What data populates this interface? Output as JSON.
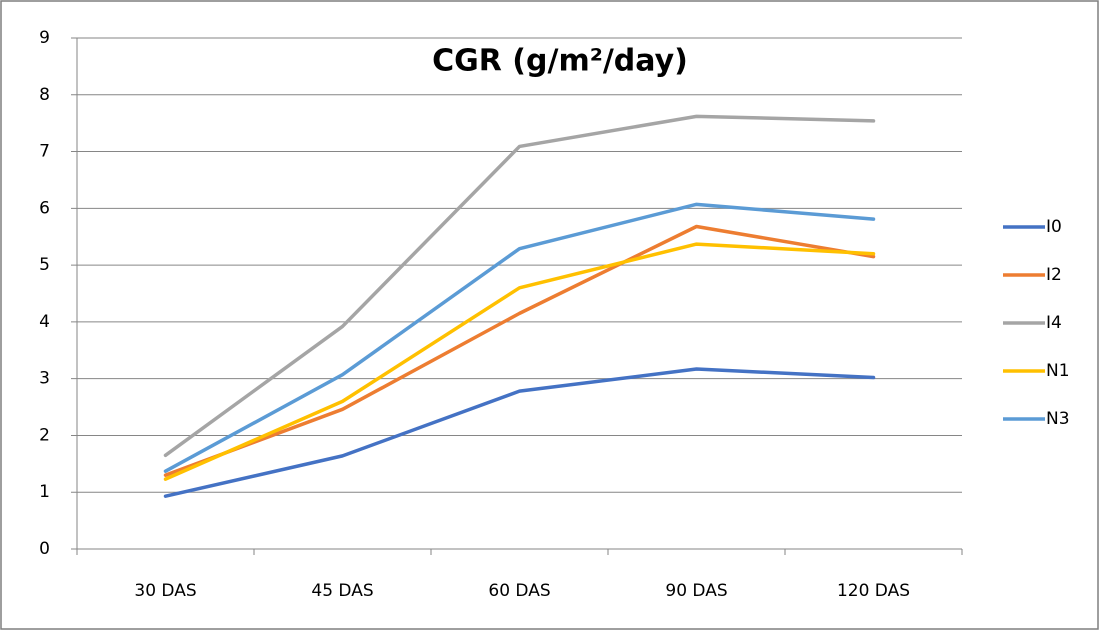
{
  "chart_data": {
    "type": "line",
    "title": "CGR (g/m²/day)",
    "categories": [
      "30 DAS",
      "45 DAS",
      "60 DAS",
      "90 DAS",
      "120 DAS"
    ],
    "series": [
      {
        "name": "I0",
        "color": "#4472c4",
        "values": [
          0.93,
          1.64,
          2.78,
          3.17,
          3.02
        ]
      },
      {
        "name": "I2",
        "color": "#ed7d31",
        "values": [
          1.3,
          2.46,
          4.15,
          5.68,
          5.15
        ]
      },
      {
        "name": "I4",
        "color": "#a5a5a5",
        "values": [
          1.65,
          3.92,
          7.09,
          7.62,
          7.54
        ]
      },
      {
        "name": "N1",
        "color": "#ffc000",
        "values": [
          1.23,
          2.6,
          4.6,
          5.37,
          5.2
        ]
      },
      {
        "name": "N3",
        "color": "#5b9bd5",
        "values": [
          1.37,
          3.07,
          5.29,
          6.07,
          5.81
        ]
      }
    ],
    "ylim": [
      0,
      9
    ],
    "yticks": [
      0,
      1,
      2,
      3,
      4,
      5,
      6,
      7,
      8,
      9
    ],
    "grid": true,
    "legend": "right"
  }
}
